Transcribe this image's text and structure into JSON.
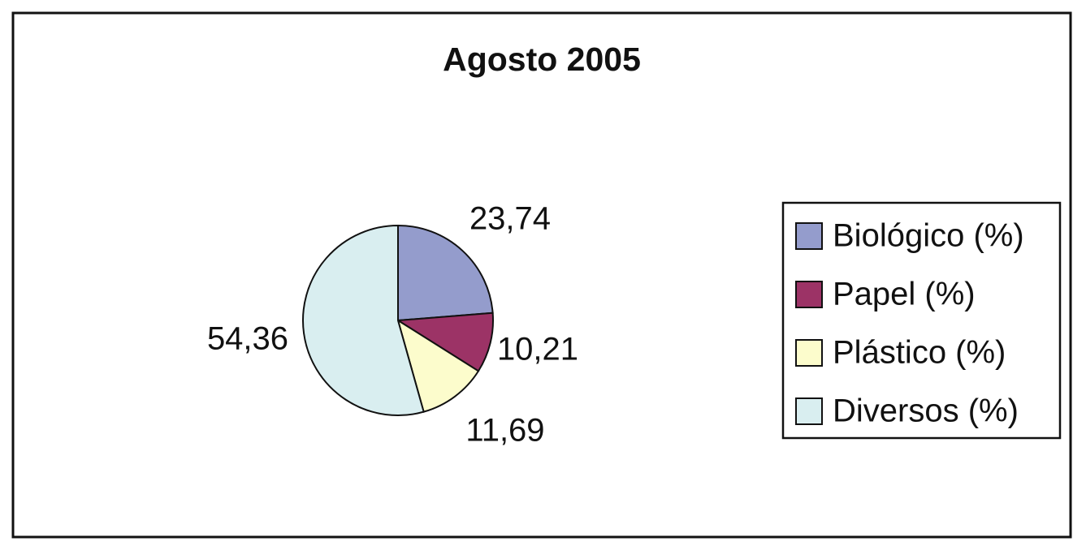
{
  "chart_data": {
    "type": "pie",
    "title": "Agosto 2005",
    "categories": [
      "Biológico (%)",
      "Papel (%)",
      "Plástico (%)",
      "Diversos (%)"
    ],
    "values": [
      23.74,
      10.21,
      11.69,
      54.36
    ],
    "value_labels": [
      "23,74",
      "10,21",
      "11,69",
      "54,36"
    ],
    "colors": [
      "#949ccc",
      "#9c3366",
      "#fcfccc",
      "#d9eef0"
    ],
    "legend": "right"
  }
}
